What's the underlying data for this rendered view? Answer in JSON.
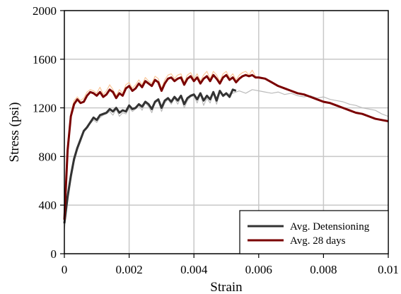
{
  "chart_data": {
    "type": "line",
    "title": "",
    "xlabel": "Strain",
    "ylabel": "Stress (psi)",
    "xlim": [
      0,
      0.01
    ],
    "ylim": [
      0,
      2000
    ],
    "x_ticks": [
      0,
      0.002,
      0.004,
      0.006,
      0.008,
      0.01
    ],
    "x_tick_labels": [
      "0",
      "0.002",
      "0.004",
      "0.006",
      "0.008",
      "0.01"
    ],
    "y_ticks": [
      0,
      400,
      800,
      1200,
      1600,
      2000
    ],
    "y_tick_labels": [
      "0",
      "400",
      "800",
      "1200",
      "1600",
      "2000"
    ],
    "grid": true,
    "legend_position": "bottom-right",
    "series": [
      {
        "name": "Avg. Detensioning",
        "color": "#333333",
        "role": "average",
        "x": [
          0,
          0.0001,
          0.0002,
          0.0003,
          0.0004,
          0.0005,
          0.0006,
          0.0007,
          0.0008,
          0.0009,
          0.001,
          0.0011,
          0.0012,
          0.0013,
          0.0014,
          0.0015,
          0.0016,
          0.0017,
          0.0018,
          0.0019,
          0.002,
          0.0021,
          0.0022,
          0.0023,
          0.0024,
          0.0025,
          0.0026,
          0.0027,
          0.0028,
          0.0029,
          0.003,
          0.0031,
          0.0032,
          0.0033,
          0.0034,
          0.0035,
          0.0036,
          0.0037,
          0.0038,
          0.0039,
          0.004,
          0.0041,
          0.0042,
          0.0043,
          0.0044,
          0.0045,
          0.0046,
          0.0047,
          0.0048,
          0.0049,
          0.005,
          0.0051,
          0.0052,
          0.0053
        ],
        "y": [
          250,
          470,
          640,
          780,
          870,
          940,
          1010,
          1040,
          1080,
          1120,
          1100,
          1140,
          1150,
          1160,
          1190,
          1170,
          1200,
          1160,
          1180,
          1170,
          1220,
          1190,
          1200,
          1230,
          1210,
          1250,
          1230,
          1190,
          1250,
          1270,
          1200,
          1260,
          1280,
          1250,
          1290,
          1260,
          1300,
          1230,
          1280,
          1300,
          1310,
          1270,
          1320,
          1260,
          1300,
          1270,
          1330,
          1260,
          1340,
          1300,
          1320,
          1290,
          1350,
          1340
        ]
      },
      {
        "name": "Avg. 28 days",
        "color": "#7a0000",
        "role": "average",
        "x": [
          0,
          0.0001,
          0.0002,
          0.0003,
          0.0004,
          0.0005,
          0.0006,
          0.0007,
          0.0008,
          0.0009,
          0.001,
          0.0011,
          0.0012,
          0.0013,
          0.0014,
          0.0015,
          0.0016,
          0.0017,
          0.0018,
          0.0019,
          0.002,
          0.0021,
          0.0022,
          0.0023,
          0.0024,
          0.0025,
          0.0026,
          0.0027,
          0.0028,
          0.0029,
          0.003,
          0.0031,
          0.0032,
          0.0033,
          0.0034,
          0.0035,
          0.0036,
          0.0037,
          0.0038,
          0.0039,
          0.004,
          0.0041,
          0.0042,
          0.0043,
          0.0044,
          0.0045,
          0.0046,
          0.0047,
          0.0048,
          0.0049,
          0.005,
          0.0051,
          0.0052,
          0.0053,
          0.0054,
          0.0055,
          0.0056,
          0.0057,
          0.0058,
          0.0059,
          0.006,
          0.0062,
          0.0064,
          0.0066,
          0.0068,
          0.007,
          0.0072,
          0.0074,
          0.0076,
          0.0078,
          0.008,
          0.0082,
          0.0084,
          0.0086,
          0.0088,
          0.009,
          0.0092,
          0.0094,
          0.0096,
          0.0098,
          0.01
        ],
        "y": [
          280,
          850,
          1130,
          1230,
          1270,
          1240,
          1250,
          1300,
          1330,
          1320,
          1300,
          1330,
          1290,
          1310,
          1350,
          1330,
          1280,
          1320,
          1300,
          1360,
          1380,
          1340,
          1360,
          1400,
          1370,
          1420,
          1400,
          1380,
          1430,
          1410,
          1340,
          1400,
          1440,
          1450,
          1420,
          1440,
          1450,
          1390,
          1440,
          1460,
          1420,
          1450,
          1400,
          1440,
          1460,
          1420,
          1470,
          1440,
          1400,
          1450,
          1470,
          1430,
          1450,
          1410,
          1440,
          1460,
          1470,
          1460,
          1470,
          1450,
          1450,
          1440,
          1410,
          1380,
          1360,
          1340,
          1320,
          1310,
          1290,
          1270,
          1250,
          1240,
          1220,
          1200,
          1180,
          1160,
          1150,
          1130,
          1110,
          1100,
          1090
        ]
      },
      {
        "name": "",
        "color": "#bbbbbb",
        "role": "specimen",
        "x": [
          0,
          0.0001,
          0.0002,
          0.0003,
          0.0004,
          0.0005,
          0.0006,
          0.0007,
          0.0008,
          0.0009,
          0.001,
          0.0011,
          0.0012,
          0.0013,
          0.0014,
          0.0015,
          0.0016,
          0.0017,
          0.0018,
          0.0019,
          0.002,
          0.0021,
          0.0022,
          0.0023,
          0.0024,
          0.0025,
          0.0026,
          0.0027,
          0.0028,
          0.0029,
          0.003,
          0.0031,
          0.0032,
          0.0033,
          0.0034,
          0.0035,
          0.0036,
          0.0037,
          0.0038,
          0.0039,
          0.004,
          0.0041,
          0.0042,
          0.0043,
          0.0044,
          0.0045,
          0.0046,
          0.0047,
          0.0048,
          0.0049,
          0.005,
          0.0052,
          0.0054,
          0.0056,
          0.0058,
          0.006,
          0.0062,
          0.0064,
          0.0066,
          0.0068,
          0.007,
          0.0072,
          0.0074,
          0.0076,
          0.0078,
          0.008,
          0.0082,
          0.0084,
          0.0086,
          0.0088,
          0.009,
          0.0092,
          0.0094,
          0.0096,
          0.0098,
          0.01
        ],
        "y": [
          200,
          420,
          600,
          750,
          850,
          920,
          1000,
          1030,
          1070,
          1100,
          1080,
          1120,
          1140,
          1150,
          1170,
          1140,
          1190,
          1130,
          1160,
          1150,
          1200,
          1170,
          1190,
          1220,
          1180,
          1240,
          1210,
          1160,
          1240,
          1260,
          1170,
          1240,
          1270,
          1230,
          1280,
          1230,
          1290,
          1200,
          1260,
          1290,
          1300,
          1240,
          1310,
          1220,
          1280,
          1240,
          1320,
          1230,
          1330,
          1290,
          1310,
          1320,
          1340,
          1320,
          1350,
          1340,
          1330,
          1320,
          1330,
          1310,
          1320,
          1300,
          1290,
          1300,
          1280,
          1290,
          1270,
          1260,
          1250,
          1230,
          1220,
          1200,
          1190,
          1180,
          1150,
          1130
        ]
      },
      {
        "name": "",
        "color": "#f9c79a",
        "role": "specimen",
        "x": [
          0,
          0.0001,
          0.0002,
          0.0003,
          0.0004,
          0.0005,
          0.0006,
          0.0007,
          0.0008,
          0.0009,
          0.001,
          0.0011,
          0.0012,
          0.0013,
          0.0014,
          0.0015,
          0.0016,
          0.0017,
          0.0018,
          0.0019,
          0.002,
          0.0021,
          0.0022,
          0.0023,
          0.0024,
          0.0025,
          0.0026,
          0.0027,
          0.0028,
          0.0029,
          0.003,
          0.0031,
          0.0032,
          0.0033,
          0.0034,
          0.0035,
          0.0036,
          0.0037,
          0.0038,
          0.0039,
          0.004,
          0.0041,
          0.0042,
          0.0043,
          0.0044,
          0.0045,
          0.0046,
          0.0047,
          0.0048,
          0.0049,
          0.005,
          0.0051,
          0.0052,
          0.0053,
          0.0054,
          0.0055,
          0.0056,
          0.0057,
          0.0058,
          0.0059,
          0.006
        ],
        "y": [
          300,
          900,
          1160,
          1260,
          1290,
          1260,
          1280,
          1330,
          1350,
          1340,
          1320,
          1370,
          1310,
          1340,
          1390,
          1350,
          1300,
          1350,
          1320,
          1390,
          1410,
          1360,
          1390,
          1430,
          1390,
          1450,
          1420,
          1400,
          1460,
          1440,
          1360,
          1430,
          1470,
          1480,
          1440,
          1470,
          1480,
          1410,
          1470,
          1490,
          1440,
          1480,
          1420,
          1470,
          1500,
          1440,
          1500,
          1470,
          1420,
          1480,
          1500,
          1450,
          1480,
          1430,
          1470,
          1490,
          1500,
          1470,
          1510,
          1460,
          1440
        ]
      }
    ]
  }
}
